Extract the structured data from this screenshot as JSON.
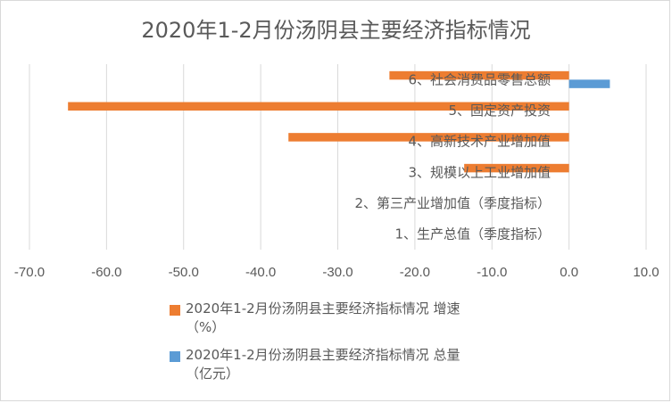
{
  "chart_data": {
    "type": "bar",
    "orientation": "horizontal",
    "title": "2020年1-2月份汤阴县主要经济指标情况",
    "categories": [
      "1、生产总值（季度指标）",
      "2、第三产业增加值（季度指标）",
      "3、规模以上工业增加值",
      "4、高新技术产业增加值",
      "5、固定资产投资",
      "6、社会消费品零售总额"
    ],
    "series": [
      {
        "name": "2020年1-2月份汤阴县主要经济指标情况 增速（%）",
        "color": "#ed7d31",
        "values": [
          null,
          null,
          -13.6,
          -36.4,
          -65.0,
          -23.3
        ]
      },
      {
        "name": "2020年1-2月份汤阴县主要经济指标情况 总量（亿元）",
        "color": "#5b9bd5",
        "values": [
          null,
          null,
          null,
          null,
          null,
          5.3
        ]
      }
    ],
    "xlim": [
      -70,
      10
    ],
    "xticks": [
      "-70.0",
      "-60.0",
      "-50.0",
      "-40.0",
      "-30.0",
      "-20.0",
      "-10.0",
      "0.0",
      "10.0"
    ],
    "grid": "vertical",
    "legend_position": "bottom"
  },
  "legend": [
    {
      "line1": "2020年1-2月份汤阴县主要经济指标情况 增速",
      "line2": "（%）",
      "color": "#ed7d31"
    },
    {
      "line1": "2020年1-2月份汤阴县主要经济指标情况 总量",
      "line2": "（亿元）",
      "color": "#5b9bd5"
    }
  ]
}
